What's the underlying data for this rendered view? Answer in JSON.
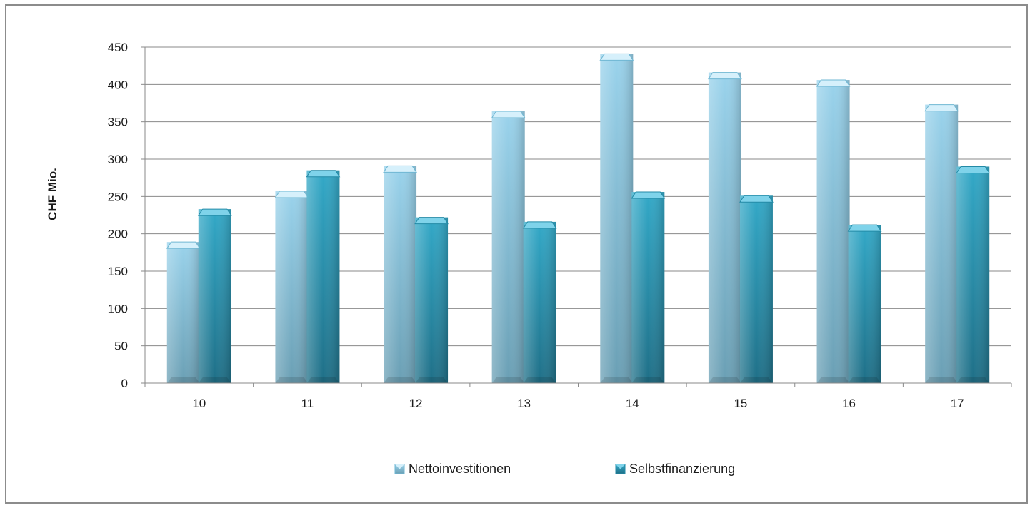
{
  "chart_data": {
    "type": "bar",
    "categories": [
      "10",
      "11",
      "12",
      "13",
      "14",
      "15",
      "16",
      "17"
    ],
    "series": [
      {
        "name": "Nettoinvestitionen",
        "values": [
          189,
          257,
          291,
          364,
          441,
          416,
          406,
          373
        ]
      },
      {
        "name": "Selbstfinanzierung",
        "values": [
          233,
          285,
          222,
          216,
          256,
          251,
          212,
          290
        ]
      }
    ],
    "title": "",
    "xlabel": "",
    "ylabel": "CHF Mio.",
    "ylim": [
      0,
      450
    ],
    "yticks": [
      0,
      50,
      100,
      150,
      200,
      250,
      300,
      350,
      400,
      450
    ],
    "grid": true,
    "legend_position": "bottom",
    "colors": {
      "Nettoinvestitionen": "#8ecae4",
      "Selbstfinanzierung": "#2e9fbd"
    }
  }
}
